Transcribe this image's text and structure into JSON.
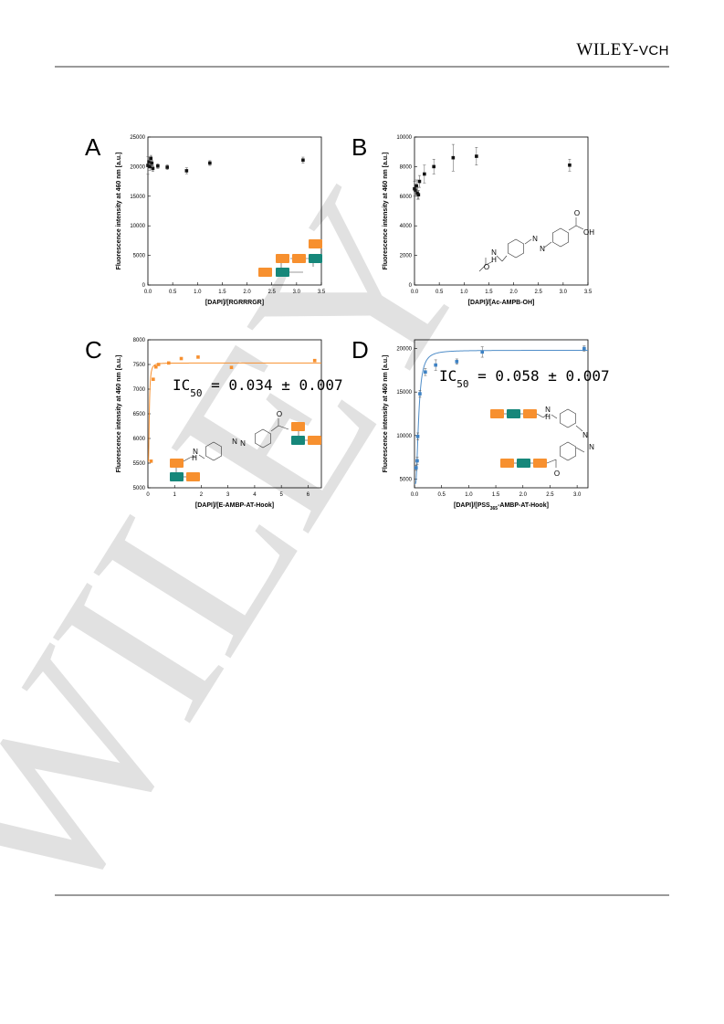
{
  "header": {
    "publisher_main": "WILEY",
    "publisher_sep": "-",
    "publisher_sub": "VCH"
  },
  "watermark": "WILEY",
  "colors": {
    "orange": "#f7902f",
    "teal": "#16877a",
    "blue": "#3e82c4",
    "curve_blue": "#4f8dc8",
    "black": "#111111"
  },
  "chart_data": [
    {
      "id": "A",
      "type": "scatter",
      "title": "",
      "xlabel": "[DAPI]/[RGRRRGR]",
      "ylabel": "Fluorescence intensity at 460 nm [a.u.]",
      "xlim": [
        0,
        3.5
      ],
      "ylim": [
        0,
        25000
      ],
      "xticks": [
        "0.0",
        "0.5",
        "1.0",
        "1.5",
        "2.0",
        "2.5",
        "3.0",
        "3.5"
      ],
      "yticks": [
        "0",
        "5000",
        "10000",
        "15000",
        "20000",
        "25000"
      ],
      "marker_color": "#111111",
      "points": [
        {
          "x": 0.0,
          "y": 20200,
          "err": 1500
        },
        {
          "x": 0.02,
          "y": 20800,
          "err": 700
        },
        {
          "x": 0.04,
          "y": 20000,
          "err": 600
        },
        {
          "x": 0.06,
          "y": 21400,
          "err": 500
        },
        {
          "x": 0.08,
          "y": 20600,
          "err": 500
        },
        {
          "x": 0.1,
          "y": 19700,
          "err": 500
        },
        {
          "x": 0.2,
          "y": 20100,
          "err": 400
        },
        {
          "x": 0.39,
          "y": 19900,
          "err": 400
        },
        {
          "x": 0.78,
          "y": 19300,
          "err": 500
        },
        {
          "x": 1.25,
          "y": 20600,
          "err": 400
        },
        {
          "x": 3.13,
          "y": 21100,
          "err": 500
        }
      ]
    },
    {
      "id": "B",
      "type": "scatter",
      "title": "",
      "xlabel": "[DAPI]/[Ac-AMPB-OH]",
      "ylabel": "Fluorescence intensity at 460 nm [a.u.]",
      "xlim": [
        0,
        3.5
      ],
      "ylim": [
        0,
        10000
      ],
      "xticks": [
        "0.0",
        "0.5",
        "1.0",
        "1.5",
        "2.0",
        "2.5",
        "3.0",
        "3.5"
      ],
      "yticks": [
        "0",
        "2000",
        "4000",
        "6000",
        "8000",
        "10000"
      ],
      "marker_color": "#111111",
      "points": [
        {
          "x": 0.0,
          "y": 6500,
          "err": 500
        },
        {
          "x": 0.02,
          "y": 6400,
          "err": 400
        },
        {
          "x": 0.04,
          "y": 6700,
          "err": 400
        },
        {
          "x": 0.06,
          "y": 6200,
          "err": 400
        },
        {
          "x": 0.08,
          "y": 6100,
          "err": 300
        },
        {
          "x": 0.1,
          "y": 7000,
          "err": 400
        },
        {
          "x": 0.2,
          "y": 7500,
          "err": 600
        },
        {
          "x": 0.39,
          "y": 8000,
          "err": 500
        },
        {
          "x": 0.78,
          "y": 8600,
          "err": 900
        },
        {
          "x": 1.25,
          "y": 8700,
          "err": 600
        },
        {
          "x": 3.13,
          "y": 8100,
          "err": 400
        }
      ],
      "chem_labels": {
        "nh": "H",
        "n": "N",
        "o": "O",
        "oh": "OH",
        "azo1": "N",
        "azo2": "N"
      }
    },
    {
      "id": "C",
      "type": "scatter",
      "title": "",
      "xlabel": "[DAPI]/[E-AMBP-AT-Hook]",
      "ylabel": "Fluorescence intensity at 460 nm [a.u.]",
      "xlim": [
        0,
        6.5
      ],
      "ylim": [
        5000,
        8000
      ],
      "xticks": [
        "0",
        "1",
        "2",
        "3",
        "4",
        "5",
        "6"
      ],
      "yticks": [
        "5000",
        "5500",
        "6000",
        "6500",
        "7000",
        "7500",
        "8000"
      ],
      "marker_color": "#f7902f",
      "annotation": "IC50 = 0.034 ± 0.007",
      "annotation_main": "IC",
      "annotation_sub": "50",
      "annotation_value": " = 0.034 ± 0.007",
      "fit": {
        "bottom": 5540,
        "top": 7530,
        "ic50": 0.034
      },
      "points": [
        {
          "x": 0.12,
          "y": 5540,
          "err": 0
        },
        {
          "x": 0.2,
          "y": 7200,
          "err": 0
        },
        {
          "x": 0.3,
          "y": 7450,
          "err": 0
        },
        {
          "x": 0.4,
          "y": 7500,
          "err": 0
        },
        {
          "x": 0.78,
          "y": 7530,
          "err": 0
        },
        {
          "x": 1.25,
          "y": 7620,
          "err": 0
        },
        {
          "x": 1.88,
          "y": 7650,
          "err": 0
        },
        {
          "x": 3.13,
          "y": 7440,
          "err": 0
        },
        {
          "x": 6.25,
          "y": 7580,
          "err": 0
        }
      ],
      "chem_labels": {
        "nh": "H",
        "n": "N",
        "o": "O",
        "azo1": "N",
        "azo2": "N"
      }
    },
    {
      "id": "D",
      "type": "scatter",
      "title": "",
      "xlabel": "[DAPI]/[PSS",
      "xlabel_sub": "365",
      "xlabel_tail": "-AMBP-AT-Hook]",
      "ylabel": "Fluorescence intensity at 460 nm [a.u.]",
      "xlim": [
        0,
        3.2
      ],
      "ylim": [
        4000,
        21000
      ],
      "xticks": [
        "0.0",
        "0.5",
        "1.0",
        "1.5",
        "2.0",
        "2.5",
        "3.0"
      ],
      "yticks": [
        "5000",
        "10000",
        "15000",
        "20000"
      ],
      "marker_color": "#3e82c4",
      "annotation": "IC50 = 0.058 ± 0.007",
      "annotation_main": "IC",
      "annotation_sub": "50",
      "annotation_value": " = 0.058 ± 0.007",
      "fit": {
        "bottom": 4500,
        "top": 19800,
        "ic50": 0.058
      },
      "points": [
        {
          "x": 0.03,
          "y": 6300,
          "err": 300
        },
        {
          "x": 0.05,
          "y": 7100,
          "err": 400
        },
        {
          "x": 0.06,
          "y": 9900,
          "err": 400
        },
        {
          "x": 0.1,
          "y": 14800,
          "err": 400
        },
        {
          "x": 0.2,
          "y": 17300,
          "err": 400
        },
        {
          "x": 0.39,
          "y": 18100,
          "err": 600
        },
        {
          "x": 0.78,
          "y": 18500,
          "err": 300
        },
        {
          "x": 1.25,
          "y": 19600,
          "err": 600
        },
        {
          "x": 3.13,
          "y": 20000,
          "err": 300
        }
      ],
      "chem_labels": {
        "nh": "H",
        "n": "N",
        "o": "O",
        "azo1": "N",
        "azo2": "N"
      }
    }
  ]
}
